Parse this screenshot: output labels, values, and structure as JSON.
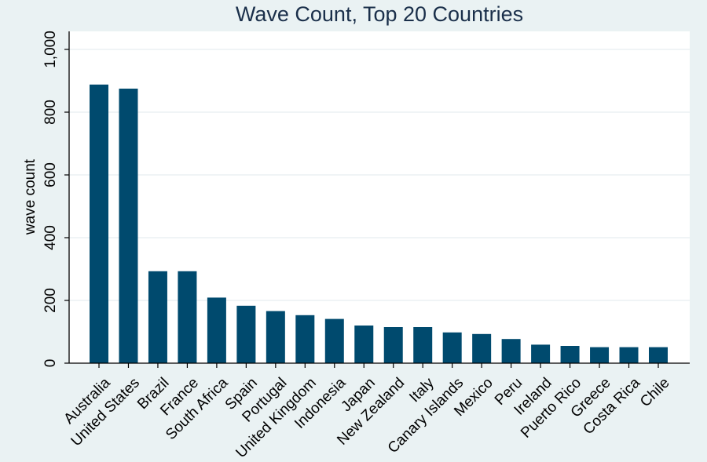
{
  "chart_data": {
    "type": "bar",
    "title": "Wave Count, Top 20 Countries",
    "xlabel": "",
    "ylabel": "wave count",
    "ylim": [
      0,
      1000
    ],
    "yticks": [
      0,
      200,
      400,
      600,
      800,
      1000
    ],
    "ytick_labels": [
      "0",
      "200",
      "400",
      "600",
      "800",
      "1,000"
    ],
    "grid": true,
    "bar_color": "#004a6e",
    "plot_background": "#ffffff",
    "figure_background": "#eaf2f3",
    "categories": [
      "Australia",
      "United States",
      "Brazil",
      "France",
      "South Africa",
      "Spain",
      "Portugal",
      "United Kingdom",
      "Indonesia",
      "Japan",
      "New Zealand",
      "Italy",
      "Canary Islands",
      "Mexico",
      "Peru",
      "Ireland",
      "Puerto Rico",
      "Greece",
      "Costa Rica",
      "Chile"
    ],
    "values": [
      888,
      875,
      293,
      293,
      209,
      183,
      166,
      153,
      141,
      120,
      115,
      115,
      98,
      93,
      77,
      59,
      55,
      51,
      51,
      51
    ]
  }
}
